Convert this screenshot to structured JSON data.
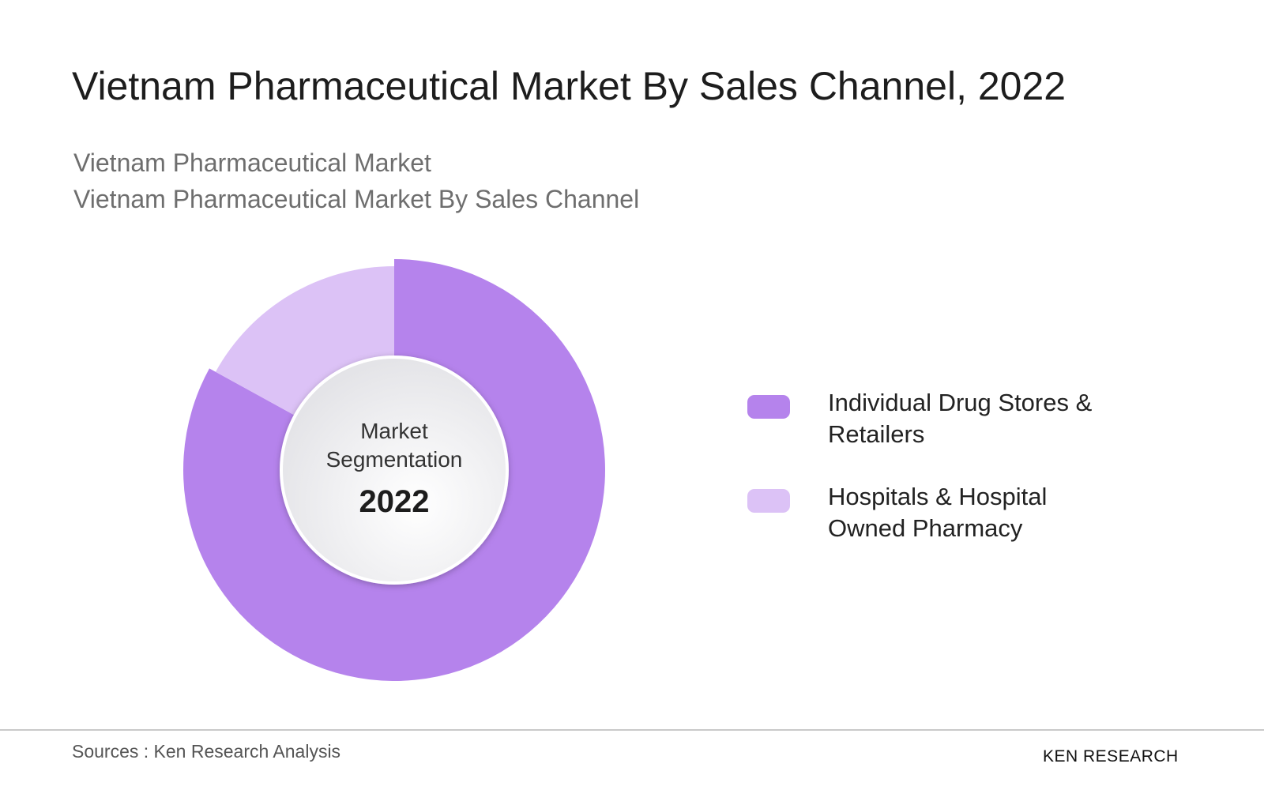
{
  "chart_data": {
    "type": "pie",
    "title": "Vietnam Pharmaceutical Market By Sales Channel, 2022",
    "subtitle": [
      "Vietnam Pharmaceutical Market",
      "Vietnam Pharmaceutical Market By Sales Channel"
    ],
    "categories": [
      "Individual Drug Stores & Retailers",
      "Hospitals & Hospital Owned Pharmacy"
    ],
    "values": [
      83,
      17
    ],
    "colors": [
      "#b583ec",
      "#dcc2f6"
    ],
    "center_label": "Market Segmentation",
    "center_year": "2022",
    "source": "Sources : Ken Research Analysis",
    "logo": "KEN RESEARCH"
  }
}
